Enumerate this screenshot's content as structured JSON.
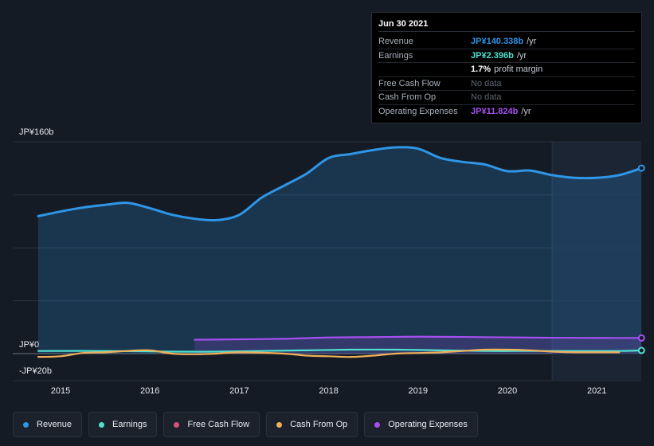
{
  "tooltip": {
    "date": "Jun 30 2021",
    "rows": [
      {
        "label": "Revenue",
        "value": "JP¥140.338b",
        "unit": "/yr",
        "color": "#2f95e6"
      },
      {
        "label": "Earnings",
        "value": "JP¥2.396b",
        "unit": "/yr",
        "color": "#4fe0cf"
      },
      {
        "label": "",
        "value": "1.7%",
        "unit": "profit margin",
        "color": "#ffffff"
      },
      {
        "label": "Free Cash Flow",
        "value": "No data",
        "unit": "",
        "color": ""
      },
      {
        "label": "Cash From Op",
        "value": "No data",
        "unit": "",
        "color": ""
      },
      {
        "label": "Operating Expenses",
        "value": "JP¥11.824b",
        "unit": "/yr",
        "color": "#a64ff0"
      }
    ]
  },
  "legend": [
    {
      "label": "Revenue",
      "color": "#2f95e6"
    },
    {
      "label": "Earnings",
      "color": "#4fe0cf"
    },
    {
      "label": "Free Cash Flow",
      "color": "#d9507a"
    },
    {
      "label": "Cash From Op",
      "color": "#f0b05a"
    },
    {
      "label": "Operating Expenses",
      "color": "#a64ff0"
    }
  ],
  "chart_data": {
    "type": "line",
    "y_axis_labels": {
      "top": "JP¥160b",
      "zero": "JP¥0",
      "bottom": "-JP¥20b"
    },
    "ylim": [
      -20,
      160
    ],
    "xlim": [
      2014.55,
      2021.5
    ],
    "x_ticks": [
      {
        "label": "2015",
        "value": 2015
      },
      {
        "label": "2016",
        "value": 2016
      },
      {
        "label": "2017",
        "value": 2017
      },
      {
        "label": "2018",
        "value": 2018
      },
      {
        "label": "2019",
        "value": 2019
      },
      {
        "label": "2020",
        "value": 2020
      },
      {
        "label": "2021",
        "value": 2021
      }
    ],
    "forecast_start": 2020.5,
    "series": [
      {
        "name": "Revenue",
        "color": "#2f95e6",
        "fill": true,
        "x": [
          2014.75,
          2015.0,
          2015.25,
          2015.5,
          2015.75,
          2016.0,
          2016.25,
          2016.5,
          2016.75,
          2017.0,
          2017.25,
          2017.5,
          2017.75,
          2018.0,
          2018.25,
          2018.5,
          2018.75,
          2019.0,
          2019.25,
          2019.5,
          2019.75,
          2020.0,
          2020.25,
          2020.5,
          2020.75,
          2021.0,
          2021.25,
          2021.5
        ],
        "values": [
          104,
          107.5,
          110.5,
          112.5,
          114,
          110,
          105,
          102,
          101,
          105,
          118,
          127,
          136,
          148,
          151,
          154,
          156,
          155,
          148,
          145,
          143,
          138,
          138.5,
          135,
          133,
          133,
          135,
          140.3
        ]
      },
      {
        "name": "Earnings",
        "color": "#4fe0cf",
        "fill": false,
        "x": [
          2014.75,
          2015.5,
          2016.25,
          2016.75,
          2017.25,
          2017.75,
          2018.25,
          2018.75,
          2019.25,
          2019.75,
          2020.25,
          2020.75,
          2021.25,
          2021.5
        ],
        "values": [
          2,
          2,
          1.5,
          1.5,
          2,
          2.5,
          3,
          3,
          2.5,
          2,
          2,
          2,
          2,
          2.4
        ]
      },
      {
        "name": "Cash From Op",
        "color": "#f0b05a",
        "fill": false,
        "x": [
          2014.75,
          2015.0,
          2015.25,
          2015.5,
          2015.75,
          2016.0,
          2016.25,
          2016.5,
          2016.75,
          2017.0,
          2017.5,
          2017.75,
          2018.0,
          2018.25,
          2018.5,
          2018.75,
          2019.0,
          2019.25,
          2019.5,
          2019.75,
          2020.0,
          2020.25,
          2020.5,
          2020.75,
          2021.0,
          2021.25
        ],
        "values": [
          -2.5,
          -2,
          0.5,
          1,
          2,
          2.5,
          0,
          -0.5,
          0,
          1,
          0,
          -1.5,
          -2,
          -2.5,
          -1.5,
          0,
          0.5,
          1,
          2,
          3,
          3,
          2.5,
          1.5,
          1,
          1,
          1
        ]
      },
      {
        "name": "Operating Expenses",
        "color": "#a64ff0",
        "fill": true,
        "x": [
          2016.5,
          2017.0,
          2017.5,
          2018.0,
          2018.5,
          2019.0,
          2019.5,
          2020.0,
          2020.5,
          2021.0,
          2021.5
        ],
        "values": [
          10.5,
          10.8,
          11.2,
          12.2,
          12.5,
          12.8,
          12.6,
          12.3,
          12,
          11.9,
          11.8
        ]
      }
    ]
  }
}
